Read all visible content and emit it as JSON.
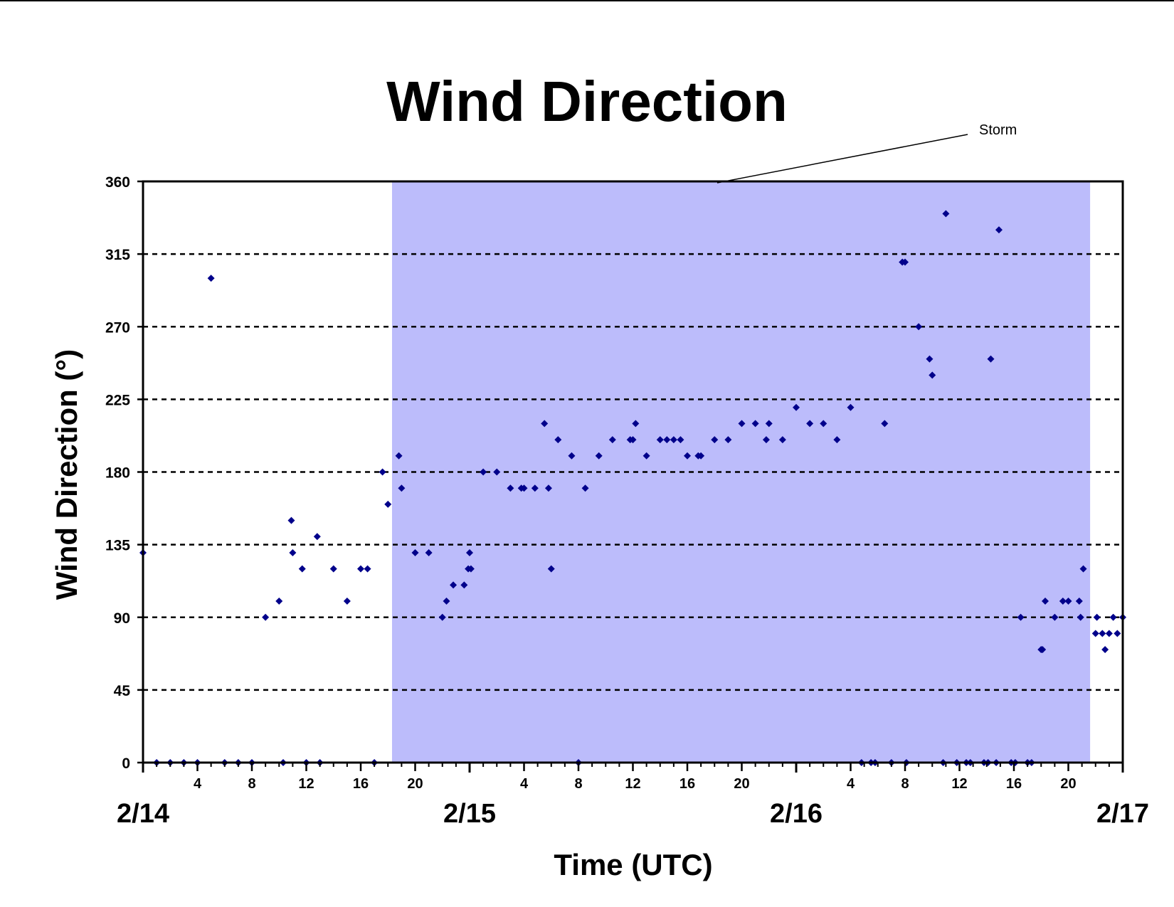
{
  "chart_data": {
    "type": "scatter",
    "title": "Wind Direction",
    "xlabel": "Time (UTC)",
    "ylabel": "Wind Direction (°)",
    "ylim": [
      0,
      360
    ],
    "yticks": [
      0,
      45,
      90,
      135,
      180,
      225,
      270,
      315,
      360
    ],
    "xlim_hours": [
      0,
      72
    ],
    "x_hour_ticks": [
      {
        "hour": 4,
        "label": "4"
      },
      {
        "hour": 8,
        "label": "8"
      },
      {
        "hour": 12,
        "label": "12"
      },
      {
        "hour": 16,
        "label": "16"
      },
      {
        "hour": 20,
        "label": "20"
      },
      {
        "hour": 28,
        "label": "4"
      },
      {
        "hour": 32,
        "label": "8"
      },
      {
        "hour": 36,
        "label": "12"
      },
      {
        "hour": 40,
        "label": "16"
      },
      {
        "hour": 44,
        "label": "20"
      },
      {
        "hour": 52,
        "label": "4"
      },
      {
        "hour": 56,
        "label": "8"
      },
      {
        "hour": 60,
        "label": "12"
      },
      {
        "hour": 64,
        "label": "16"
      },
      {
        "hour": 68,
        "label": "20"
      }
    ],
    "day_labels": [
      {
        "hour": 0,
        "label": "2/14"
      },
      {
        "hour": 24,
        "label": "2/15"
      },
      {
        "hour": 48,
        "label": "2/16"
      },
      {
        "hour": 72,
        "label": "2/17"
      }
    ],
    "grid": "horizontal dashed",
    "marker_color": "#00008B",
    "shade_color": "#BCBCFB",
    "storm_period_hours": [
      18.3,
      69.6
    ],
    "annotation": {
      "text": "Storm"
    },
    "points": [
      [
        0,
        130
      ],
      [
        1,
        0
      ],
      [
        2,
        0
      ],
      [
        3,
        0
      ],
      [
        4,
        0
      ],
      [
        5,
        300
      ],
      [
        6,
        0
      ],
      [
        7,
        0
      ],
      [
        8,
        0
      ],
      [
        9,
        90
      ],
      [
        10,
        100
      ],
      [
        10.3,
        0
      ],
      [
        10.9,
        150
      ],
      [
        11,
        130
      ],
      [
        11.7,
        120
      ],
      [
        12,
        0
      ],
      [
        12.8,
        140
      ],
      [
        13,
        0
      ],
      [
        14,
        120
      ],
      [
        15,
        100
      ],
      [
        16,
        120
      ],
      [
        16.5,
        120
      ],
      [
        17,
        0
      ],
      [
        17.6,
        180
      ],
      [
        18,
        160
      ],
      [
        18.8,
        190
      ],
      [
        19,
        170
      ],
      [
        20,
        130
      ],
      [
        21,
        130
      ],
      [
        22,
        90
      ],
      [
        22.3,
        100
      ],
      [
        22.8,
        110
      ],
      [
        23.6,
        110
      ],
      [
        23.9,
        120
      ],
      [
        24,
        130
      ],
      [
        24.1,
        120
      ],
      [
        25,
        180
      ],
      [
        26,
        180
      ],
      [
        27,
        170
      ],
      [
        27.8,
        170
      ],
      [
        28,
        170
      ],
      [
        28.8,
        170
      ],
      [
        29.5,
        210
      ],
      [
        29.8,
        170
      ],
      [
        30,
        120
      ],
      [
        30.5,
        200
      ],
      [
        31.5,
        190
      ],
      [
        32,
        0
      ],
      [
        32.5,
        170
      ],
      [
        33.5,
        190
      ],
      [
        34.5,
        200
      ],
      [
        35.8,
        200
      ],
      [
        36,
        200
      ],
      [
        36.2,
        210
      ],
      [
        37,
        190
      ],
      [
        38,
        200
      ],
      [
        38.5,
        200
      ],
      [
        39,
        200
      ],
      [
        39.5,
        200
      ],
      [
        40,
        190
      ],
      [
        40.8,
        190
      ],
      [
        41,
        190
      ],
      [
        42,
        200
      ],
      [
        43,
        200
      ],
      [
        44,
        210
      ],
      [
        45,
        210
      ],
      [
        45.8,
        200
      ],
      [
        46,
        210
      ],
      [
        47,
        200
      ],
      [
        48,
        220
      ],
      [
        49,
        210
      ],
      [
        50,
        210
      ],
      [
        51,
        200
      ],
      [
        52,
        220
      ],
      [
        52.8,
        0
      ],
      [
        53.5,
        0
      ],
      [
        53.8,
        0
      ],
      [
        54.5,
        210
      ],
      [
        55,
        0
      ],
      [
        55.8,
        310
      ],
      [
        56,
        310
      ],
      [
        56.1,
        0
      ],
      [
        57,
        270
      ],
      [
        57.8,
        250
      ],
      [
        58,
        240
      ],
      [
        58.8,
        0
      ],
      [
        59,
        340
      ],
      [
        59.8,
        0
      ],
      [
        60.5,
        0
      ],
      [
        60.8,
        0
      ],
      [
        61.8,
        0
      ],
      [
        62.1,
        0
      ],
      [
        62.3,
        250
      ],
      [
        62.7,
        0
      ],
      [
        62.9,
        330
      ],
      [
        63.8,
        0
      ],
      [
        64.1,
        0
      ],
      [
        64.5,
        90
      ],
      [
        65,
        0
      ],
      [
        65.3,
        0
      ],
      [
        66,
        70
      ],
      [
        66.1,
        70
      ],
      [
        66.3,
        100
      ],
      [
        67,
        90
      ],
      [
        67.6,
        100
      ],
      [
        68,
        100
      ],
      [
        68.8,
        100
      ],
      [
        68.9,
        90
      ],
      [
        69.1,
        120
      ],
      [
        70,
        80
      ],
      [
        70.1,
        90
      ],
      [
        70.5,
        80
      ],
      [
        70.7,
        70
      ],
      [
        71,
        80
      ],
      [
        71.3,
        90
      ],
      [
        71.6,
        80
      ],
      [
        72,
        90
      ]
    ]
  }
}
